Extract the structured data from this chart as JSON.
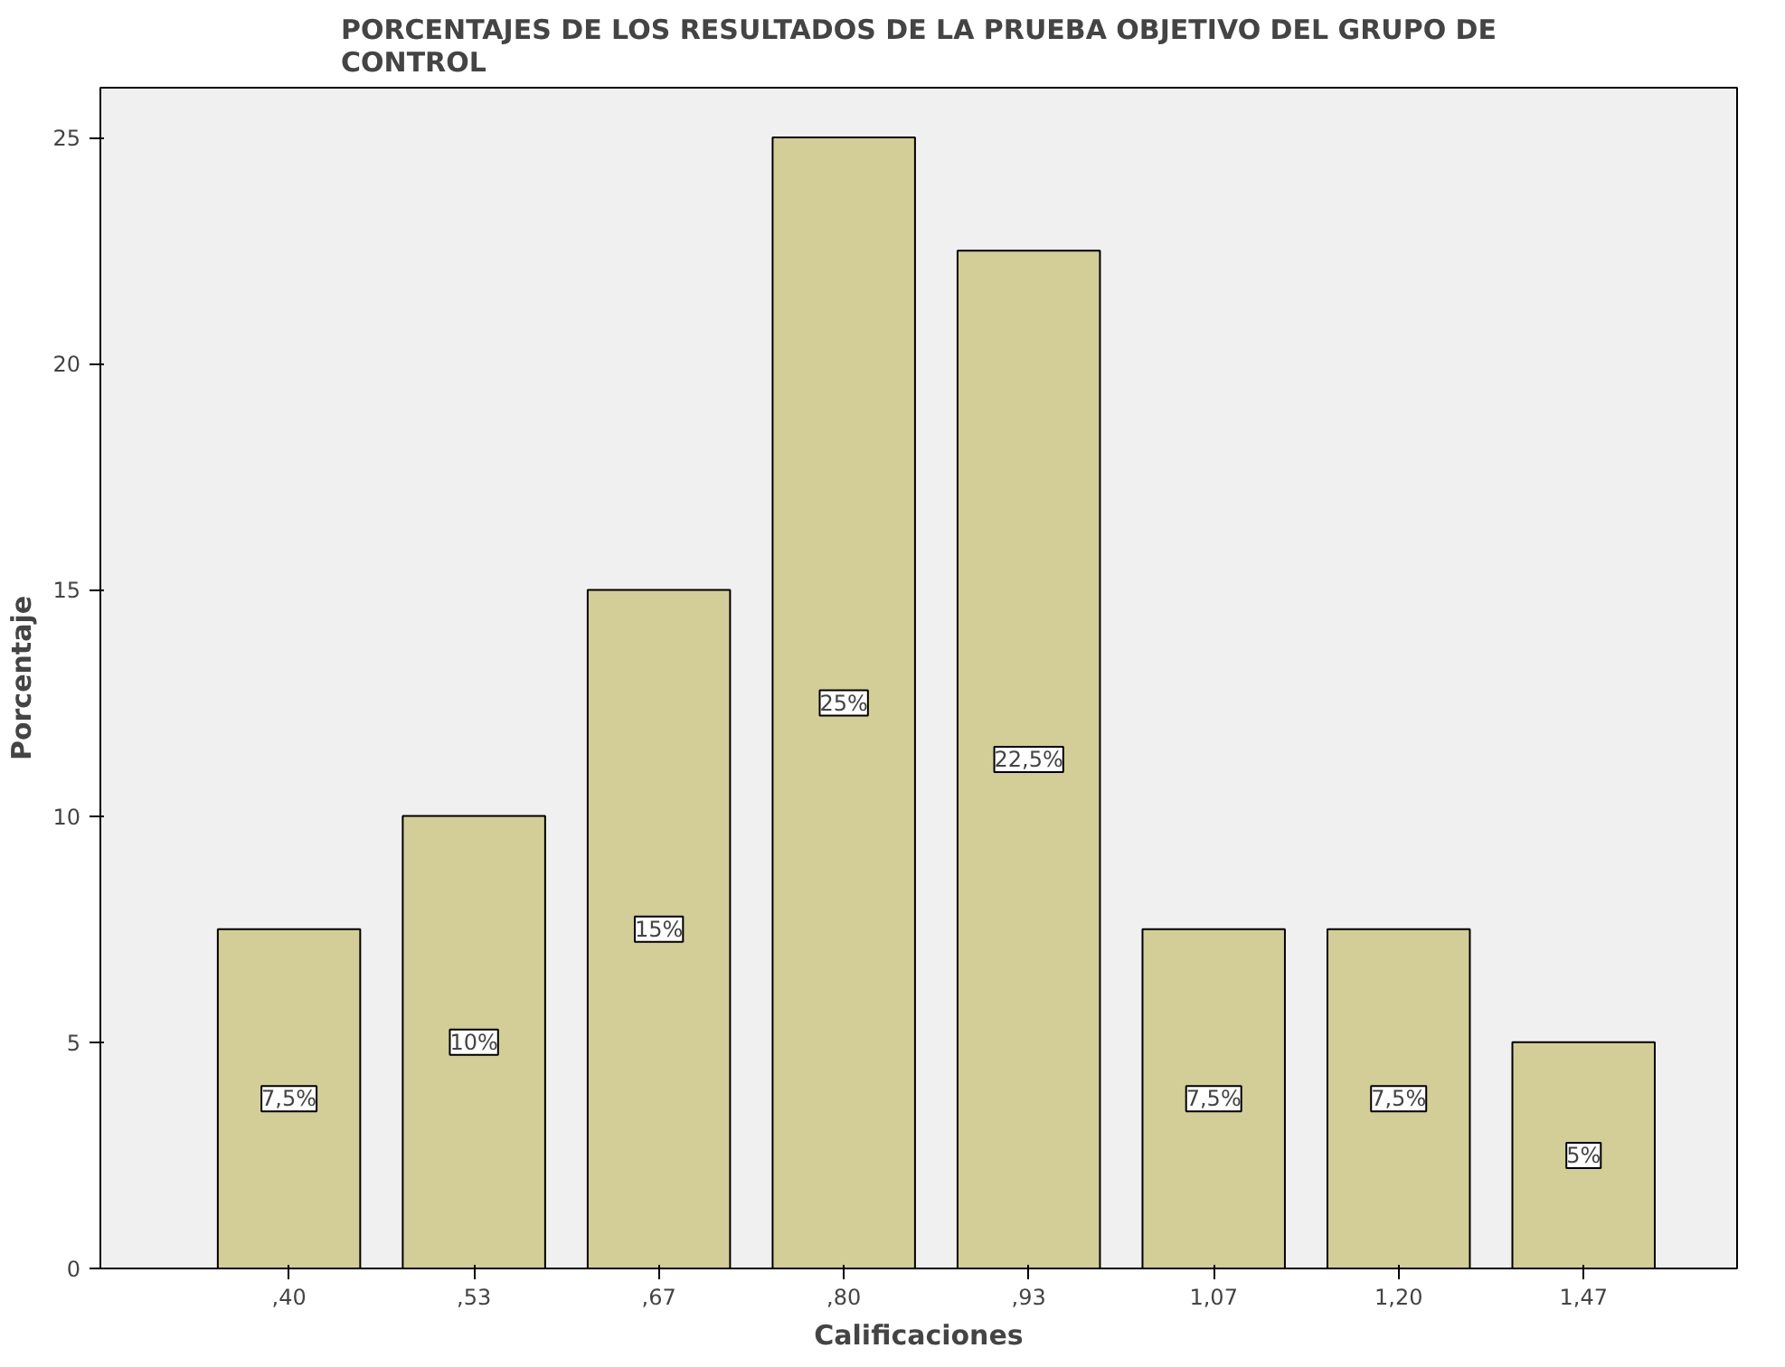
{
  "chart_data": {
    "type": "bar",
    "title": "PORCENTAJES DE LOS RESULTADOS DE LA PRUEBA OBJETIVO DEL GRUPO DE CONTROL",
    "xlabel": "Calificaciones",
    "ylabel": "Porcentaje",
    "categories": [
      ",40",
      ",53",
      ",67",
      ",80",
      ",93",
      "1,07",
      "1,20",
      "1,47"
    ],
    "values": [
      7.5,
      10,
      15,
      25,
      22.5,
      7.5,
      7.5,
      5
    ],
    "value_labels": [
      "7,5%",
      "10%",
      "15%",
      "25%",
      "22,5%",
      "7,5%",
      "7,5%",
      "5%"
    ],
    "color": "#d3ce97",
    "ylim": [
      0,
      26.1
    ],
    "yticks": [
      0,
      5,
      10,
      15,
      20,
      25
    ],
    "grid": false
  }
}
